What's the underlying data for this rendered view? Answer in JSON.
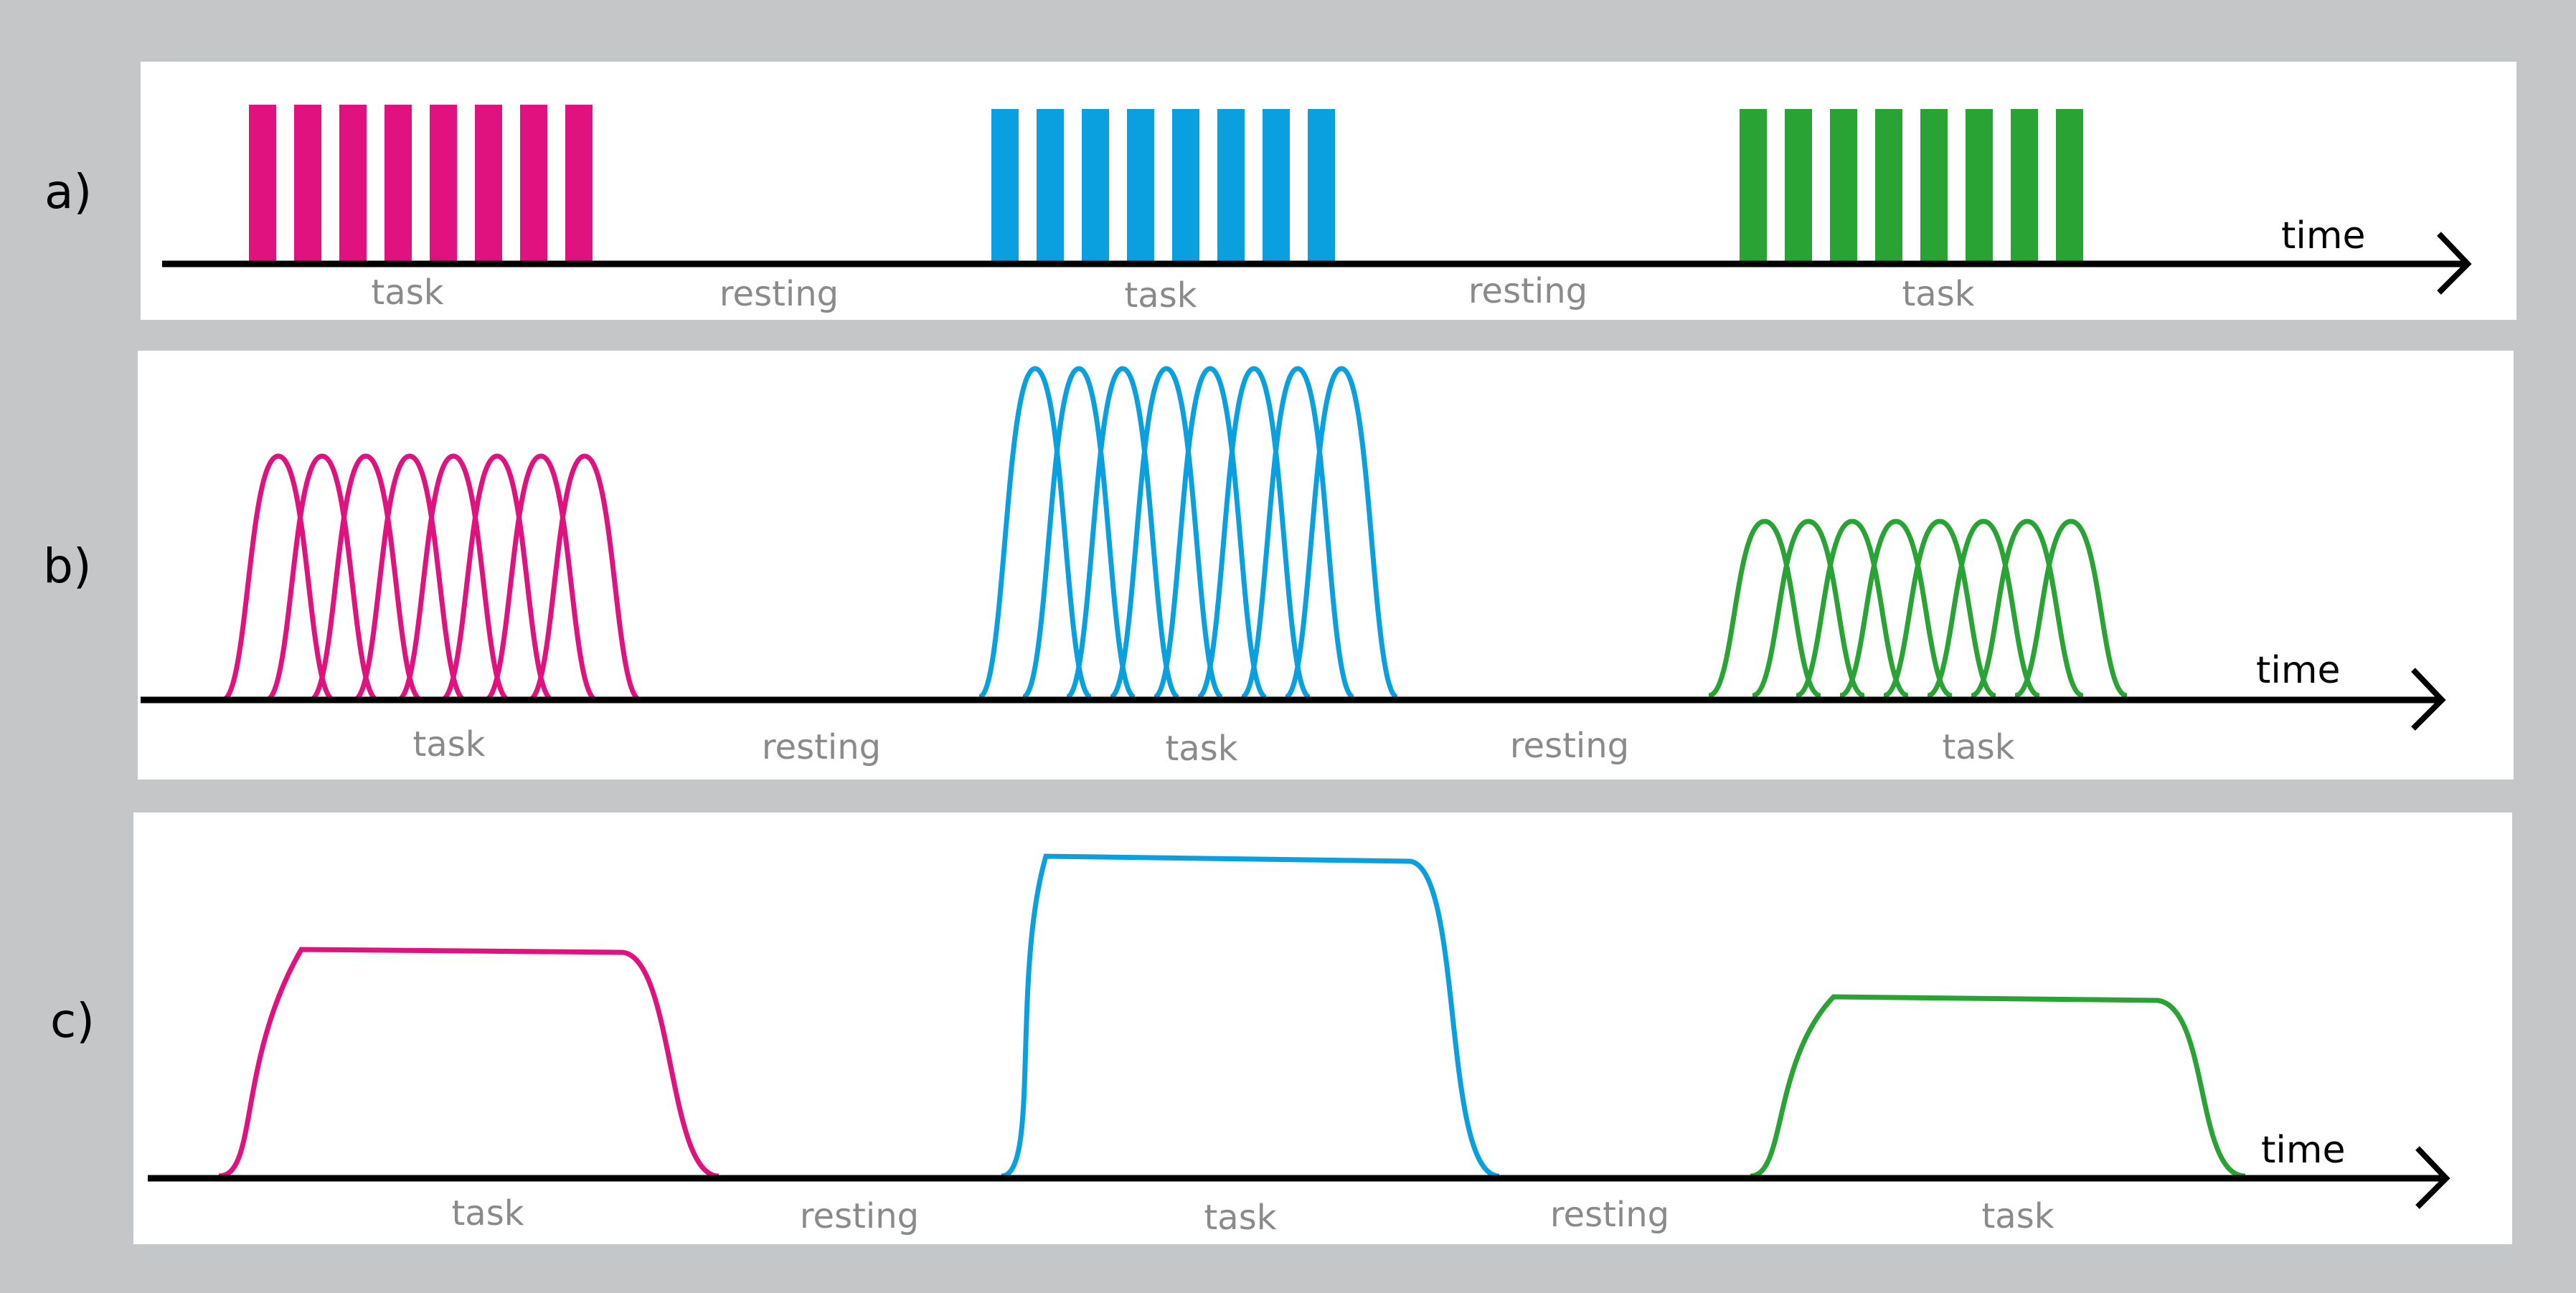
{
  "colors": {
    "background": "#c4c6c8",
    "panel": "#ffffff",
    "axis": "#000000",
    "label": "#8a8a8a",
    "block1": "#e0127f",
    "block2": "#0aa0e0",
    "block3": "#2aa335"
  },
  "panels": [
    {
      "letter": "a)",
      "axis_label": "time",
      "representation": "stimulus-bars",
      "stimuli_per_block": 8,
      "phases": [
        "task",
        "resting",
        "task",
        "resting",
        "task"
      ]
    },
    {
      "letter": "b)",
      "axis_label": "time",
      "representation": "individual-responses",
      "stimuli_per_block": 8,
      "relative_amplitudes": [
        0.68,
        0.93,
        0.5
      ],
      "phases": [
        "task",
        "resting",
        "task",
        "resting",
        "task"
      ]
    },
    {
      "letter": "c)",
      "axis_label": "time",
      "representation": "summed-response",
      "relative_amplitudes": [
        0.65,
        0.88,
        0.55
      ],
      "phases": [
        "task",
        "resting",
        "task",
        "resting",
        "task"
      ]
    }
  ]
}
